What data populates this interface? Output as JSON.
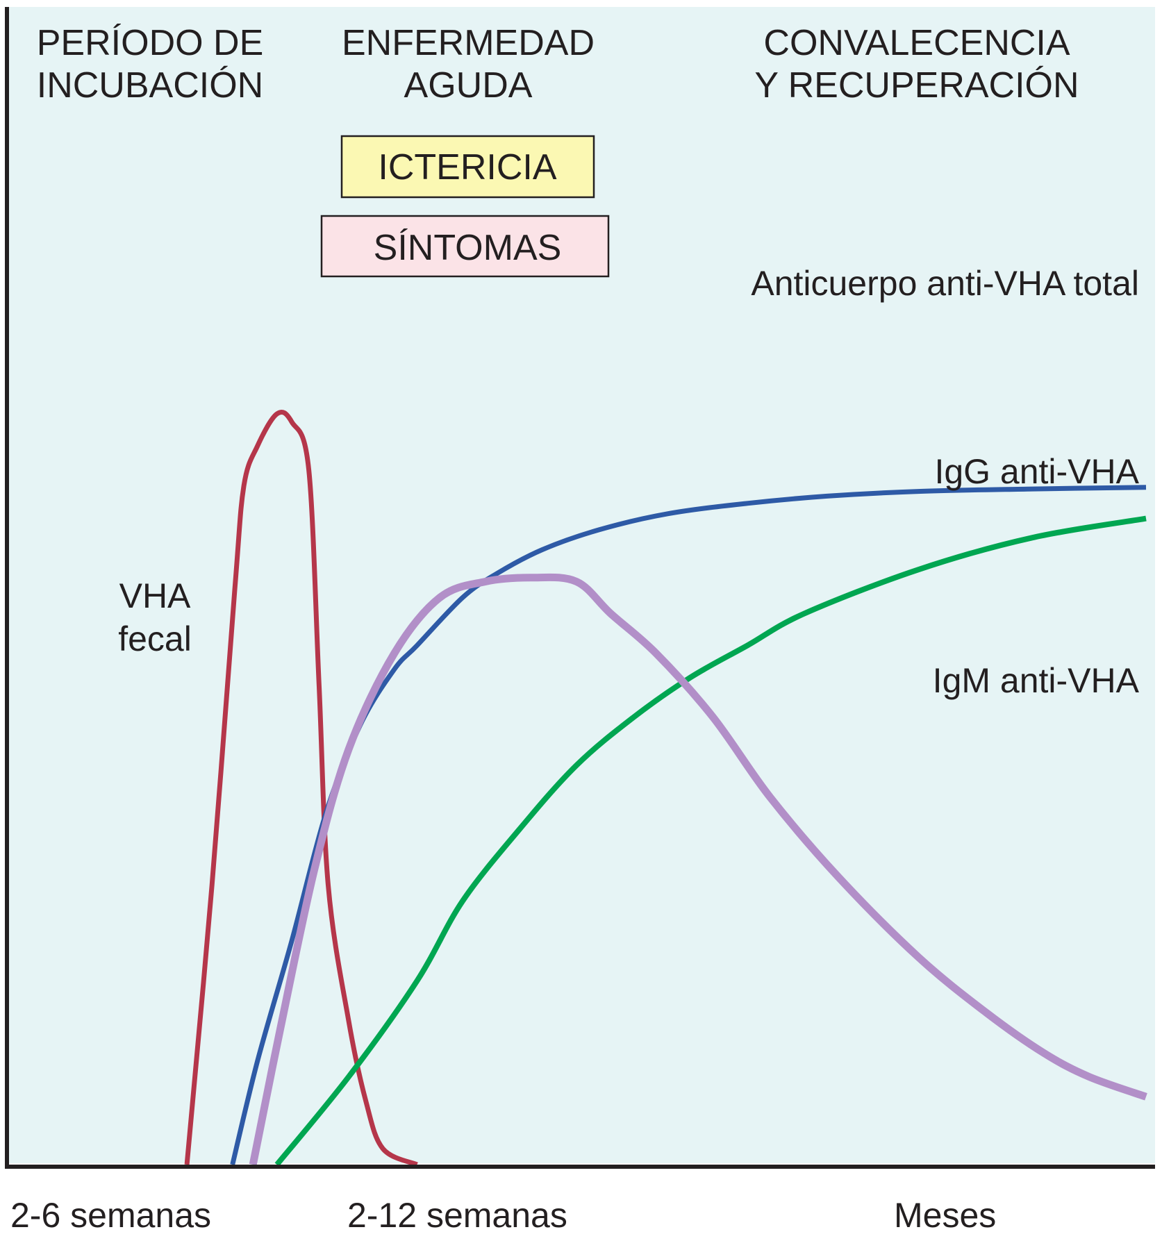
{
  "chart_data": {
    "type": "line",
    "title": "",
    "xlabel": "",
    "ylabel": "",
    "phases": [
      {
        "lines": [
          "PERÍODO DE",
          "INCUBACIÓN"
        ]
      },
      {
        "lines": [
          "ENFERMEDAD",
          "AGUDA"
        ]
      },
      {
        "lines": [
          "CONVALECENCIA",
          "Y RECUPERACIÓN"
        ]
      }
    ],
    "bars": [
      {
        "label": "ICTERICIA",
        "color": "#fbf8b3"
      },
      {
        "label": "SÍNTOMAS",
        "color": "#fbe3e7"
      }
    ],
    "x_ticks": [
      "2-6 semanas",
      "2-12 semanas",
      "Meses"
    ],
    "xlim": [
      0,
      100
    ],
    "ylim": [
      0,
      100
    ],
    "grid": false,
    "background_color": "#e6f4f5",
    "series": [
      {
        "name": "VHA fecal",
        "label_lines": [
          "VHA",
          "fecal"
        ],
        "color": "#b5364a",
        "x": [
          15.8,
          18,
          20,
          20.8,
          22,
          23.7,
          25,
          26.5,
          27.4,
          28.2,
          30,
          31.5,
          33,
          36
        ],
        "y": [
          0,
          35,
          72,
          85,
          90,
          94,
          93,
          87,
          60,
          35,
          18,
          8,
          2,
          0
        ]
      },
      {
        "name": "Anticuerpo anti-VHA total",
        "color": "#2e5aa6",
        "x": [
          19.8,
          22,
          25,
          28,
          31,
          34,
          36,
          40,
          43,
          47,
          52,
          58,
          65,
          72,
          80,
          90,
          100
        ],
        "y": [
          0,
          13,
          28,
          44,
          55,
          62,
          65,
          71,
          74,
          77,
          79.5,
          81.5,
          82.8,
          83.7,
          84.3,
          84.6,
          84.8
        ]
      },
      {
        "name": "IgG anti-VHA",
        "color": "#00a651",
        "x": [
          23.7,
          30,
          36,
          40,
          45,
          50,
          55,
          60,
          65,
          70,
          80,
          90,
          100
        ],
        "y": [
          0,
          11,
          23,
          33,
          42,
          50,
          56,
          61,
          65,
          69,
          74.5,
          78.5,
          80.9
        ]
      },
      {
        "name": "IgM anti-VHA",
        "color": "#b28fc8",
        "x": [
          21.6,
          24,
          27,
          30,
          34,
          38,
          42,
          46,
          50,
          53,
          57,
          62,
          67,
          73,
          80,
          86,
          91,
          95,
          100
        ],
        "y": [
          0,
          17,
          37,
          52,
          64,
          71,
          73,
          73.5,
          73,
          69,
          64,
          56,
          46,
          36,
          26,
          19,
          14,
          11,
          8.5
        ]
      }
    ]
  }
}
